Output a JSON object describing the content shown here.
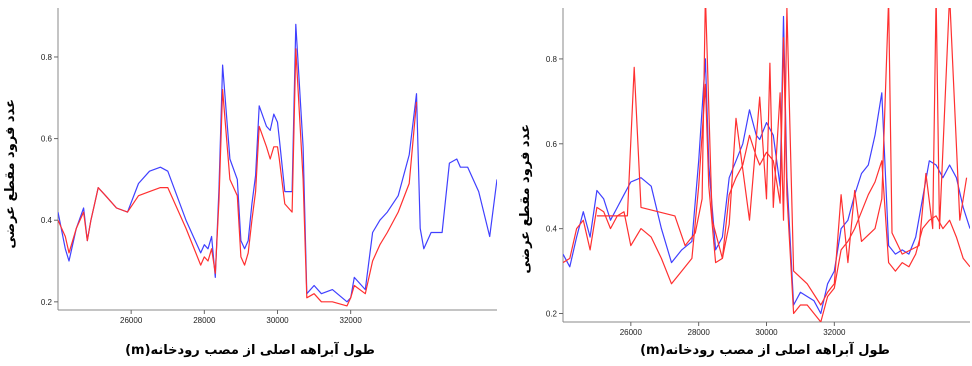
{
  "chart_data": [
    {
      "type": "line",
      "ylabel": "عدد فرود مقطع عرضی",
      "xlabel": "طول آبراهه اصلی از مصب رودخانه(m)",
      "xlim": [
        24000,
        36000
      ],
      "ylim": [
        0.18,
        0.92
      ],
      "x_ticks": [
        "26000",
        "28000",
        "30000",
        "32000"
      ],
      "y_ticks": [
        "0.2",
        "0.4",
        "0.6",
        "0.8"
      ],
      "grid": false,
      "series": [
        {
          "color": "#4040ff",
          "x": [
            24000,
            24200,
            24300,
            24500,
            24700,
            24800,
            24900,
            25000,
            25100,
            25300,
            25600,
            25900,
            26200,
            26500,
            26800,
            27000,
            27500,
            27900,
            28000,
            28100,
            28200,
            28300,
            28400,
            28500,
            28700,
            28900,
            29000,
            29100,
            29200,
            29300,
            29400,
            29500,
            29700,
            29800,
            29900,
            30000,
            30050,
            30200,
            30400,
            30500,
            30700,
            30800,
            31000,
            31200,
            31500,
            31900,
            32000,
            32100,
            32400,
            32600,
            32800,
            33000,
            33300,
            33600,
            33800,
            33900,
            34000,
            34200,
            34500,
            34700,
            34900,
            35000,
            35200,
            35500,
            35800,
            36000
          ],
          "y": [
            0.42,
            0.33,
            0.3,
            0.38,
            0.43,
            0.35,
            0.4,
            0.44,
            0.48,
            0.46,
            0.43,
            0.42,
            0.49,
            0.52,
            0.53,
            0.52,
            0.4,
            0.32,
            0.34,
            0.33,
            0.36,
            0.26,
            0.48,
            0.78,
            0.55,
            0.5,
            0.35,
            0.33,
            0.35,
            0.44,
            0.51,
            0.68,
            0.63,
            0.62,
            0.66,
            0.64,
            0.6,
            0.47,
            0.47,
            0.88,
            0.58,
            0.22,
            0.24,
            0.22,
            0.23,
            0.2,
            0.21,
            0.26,
            0.23,
            0.37,
            0.4,
            0.42,
            0.46,
            0.56,
            0.71,
            0.38,
            0.33,
            0.37,
            0.37,
            0.54,
            0.55,
            0.53,
            0.53,
            0.47,
            0.36,
            0.5
          ]
        },
        {
          "color": "#ff3030",
          "x": [
            24000,
            24200,
            24300,
            24500,
            24700,
            24800,
            24900,
            25000,
            25100,
            25300,
            25600,
            25900,
            26200,
            26500,
            26800,
            27000,
            27500,
            27900,
            28000,
            28100,
            28200,
            28300,
            28400,
            28500,
            28700,
            28900,
            29000,
            29100,
            29200,
            29300,
            29400,
            29500,
            29700,
            29800,
            29900,
            30000,
            30050,
            30200,
            30400,
            30500,
            30700,
            30800,
            31000,
            31200,
            31500,
            31900,
            32000,
            32100,
            32400,
            32600,
            32800,
            33000,
            33300,
            33600,
            33800
          ],
          "y": [
            0.4,
            0.36,
            0.32,
            0.38,
            0.42,
            0.35,
            0.4,
            0.44,
            0.48,
            0.46,
            0.43,
            0.42,
            0.46,
            0.47,
            0.48,
            0.48,
            0.38,
            0.29,
            0.31,
            0.3,
            0.33,
            0.27,
            0.45,
            0.72,
            0.5,
            0.46,
            0.31,
            0.29,
            0.32,
            0.4,
            0.47,
            0.63,
            0.58,
            0.55,
            0.58,
            0.58,
            0.55,
            0.44,
            0.42,
            0.82,
            0.5,
            0.21,
            0.22,
            0.2,
            0.2,
            0.19,
            0.21,
            0.24,
            0.22,
            0.3,
            0.34,
            0.37,
            0.42,
            0.49,
            0.69
          ]
        }
      ]
    },
    {
      "type": "line",
      "ylabel": "عدد فرود مقطع عرضی",
      "xlabel": "طول آبراهه اصلی از مصب رودخانه(m)",
      "xlim": [
        24000,
        36000
      ],
      "ylim": [
        0.18,
        0.92
      ],
      "x_ticks": [
        "26000",
        "28000",
        "30000",
        "32000"
      ],
      "y_ticks": [
        "0.2",
        "0.4",
        "0.6",
        "0.8"
      ],
      "grid": false,
      "series": [
        {
          "color": "#4040ff",
          "x": [
            24000,
            24200,
            24400,
            24600,
            24800,
            25000,
            25200,
            25400,
            25600,
            25800,
            26000,
            26300,
            26600,
            26900,
            27200,
            27500,
            27800,
            28000,
            28200,
            28300,
            28500,
            28700,
            28900,
            29100,
            29300,
            29500,
            29700,
            29800,
            30000,
            30200,
            30400,
            30500,
            30600,
            30800,
            31000,
            31200,
            31400,
            31600,
            31800,
            32000,
            32200,
            32400,
            32600,
            32800,
            33000,
            33200,
            33400,
            33600,
            33800,
            34000,
            34200,
            34400,
            34600,
            34800,
            35000,
            35200,
            35400,
            35600,
            35800,
            36000
          ],
          "y": [
            0.34,
            0.31,
            0.38,
            0.44,
            0.38,
            0.49,
            0.47,
            0.42,
            0.45,
            0.48,
            0.51,
            0.52,
            0.5,
            0.4,
            0.32,
            0.35,
            0.37,
            0.56,
            0.8,
            0.55,
            0.35,
            0.38,
            0.52,
            0.56,
            0.6,
            0.68,
            0.62,
            0.61,
            0.65,
            0.62,
            0.5,
            0.9,
            0.52,
            0.22,
            0.25,
            0.24,
            0.23,
            0.2,
            0.27,
            0.3,
            0.4,
            0.42,
            0.48,
            0.53,
            0.55,
            0.62,
            0.72,
            0.36,
            0.34,
            0.35,
            0.34,
            0.38,
            0.47,
            0.56,
            0.55,
            0.52,
            0.55,
            0.52,
            0.45,
            0.4
          ]
        },
        {
          "color": "#ff3030",
          "x": [
            24000,
            24200,
            24400,
            24600,
            24800,
            25000,
            25200,
            25400,
            25600,
            25800,
            26000,
            26300,
            26600,
            26900,
            27200,
            27500,
            27800,
            28000,
            28200,
            28300,
            28500,
            28700,
            28900,
            29100,
            29300,
            29500,
            29700,
            29800,
            30000,
            30200,
            30400,
            30500,
            30600,
            30800,
            31000,
            31200,
            31400,
            31600,
            31800,
            32000,
            32200,
            32400,
            32600,
            32800,
            33000,
            33200,
            33400,
            33600,
            33800,
            34000,
            34200,
            34400,
            34600,
            34800,
            35000,
            35200,
            35400,
            35600,
            35800,
            36000
          ],
          "y": [
            0.32,
            0.33,
            0.4,
            0.42,
            0.35,
            0.45,
            0.44,
            0.4,
            0.43,
            0.44,
            0.36,
            0.4,
            0.38,
            0.33,
            0.27,
            0.3,
            0.33,
            0.5,
            0.74,
            0.5,
            0.32,
            0.33,
            0.48,
            0.52,
            0.55,
            0.62,
            0.57,
            0.55,
            0.58,
            0.56,
            0.46,
            0.85,
            0.48,
            0.2,
            0.22,
            0.22,
            0.2,
            0.18,
            0.24,
            0.26,
            0.35,
            0.37,
            0.4,
            0.44,
            0.48,
            0.51,
            0.56,
            0.32,
            0.3,
            0.32,
            0.31,
            0.34,
            0.4,
            0.42,
            0.43,
            0.4,
            0.42,
            0.38,
            0.33,
            0.31
          ]
        },
        {
          "color": "#ff3030",
          "x": [
            25000,
            25900,
            26100,
            26300,
            27300,
            27600,
            27900,
            28100,
            28200,
            28400,
            28700,
            28900,
            29100,
            29500,
            29800,
            30000,
            30100,
            30200,
            30400,
            30500,
            30600,
            30800,
            31200,
            31600,
            31800,
            32000,
            32200,
            32400,
            32600,
            32800,
            33200,
            33400,
            33600,
            33700,
            34000,
            34500,
            34700,
            34900,
            35000,
            35100,
            35400,
            35700,
            35900
          ],
          "y": [
            0.43,
            0.43,
            0.78,
            0.45,
            0.43,
            0.36,
            0.39,
            0.47,
            0.95,
            0.42,
            0.33,
            0.41,
            0.66,
            0.42,
            0.71,
            0.47,
            0.79,
            0.45,
            0.72,
            0.42,
            0.92,
            0.3,
            0.27,
            0.22,
            0.25,
            0.27,
            0.48,
            0.32,
            0.49,
            0.37,
            0.4,
            0.47,
            0.94,
            0.39,
            0.34,
            0.36,
            0.53,
            0.4,
            0.95,
            0.4,
            0.95,
            0.42,
            0.52
          ]
        }
      ]
    }
  ]
}
